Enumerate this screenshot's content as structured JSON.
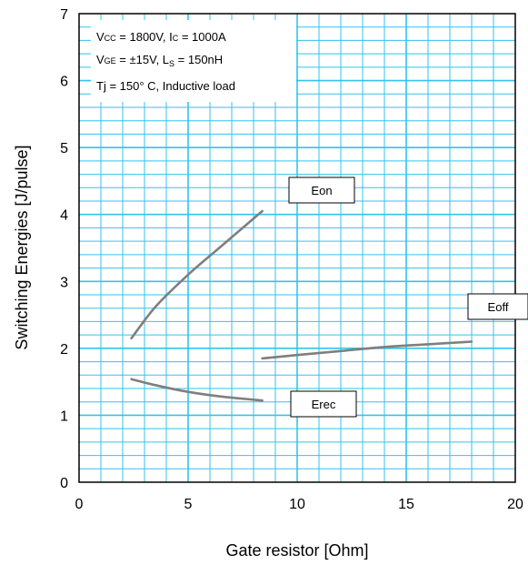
{
  "chart_data": {
    "type": "line",
    "title": "",
    "xlabel": "Gate resistor [Ohm]",
    "ylabel": "Switching Energies [J/pulse]",
    "xlim": [
      0,
      20
    ],
    "ylim": [
      0,
      7
    ],
    "xticks": [
      "0",
      "5",
      "10",
      "15",
      "20"
    ],
    "yticks": [
      "0",
      "1",
      "2",
      "3",
      "4",
      "5",
      "6",
      "7"
    ],
    "grid": true,
    "grid_color": "#33c3ee",
    "curve_color": "#7f7f7f",
    "conditions": {
      "line1": {
        "v": "V",
        "v_sub": "CC",
        "a": " = 1800V, I",
        "i_sub": "C",
        "b": " = 1000A"
      },
      "line2": {
        "v": "V",
        "v_sub": "GE",
        "a": " = ±15V, L",
        "l_sub": "S",
        "b": " = 150nH"
      },
      "line3": {
        "text": "Tj = 150°  C, Inductive load"
      }
    },
    "series": [
      {
        "name": "Eon",
        "label_pos": "upper-middle",
        "points": [
          [
            2.4,
            2.15
          ],
          [
            3.5,
            2.62
          ],
          [
            5.0,
            3.1
          ],
          [
            6.5,
            3.52
          ],
          [
            8.4,
            4.05
          ]
        ]
      },
      {
        "name": "Eoff",
        "label_pos": "right",
        "points": [
          [
            8.4,
            1.85
          ],
          [
            10,
            1.9
          ],
          [
            12,
            1.96
          ],
          [
            14,
            2.02
          ],
          [
            16,
            2.06
          ],
          [
            18,
            2.1
          ]
        ]
      },
      {
        "name": "Erec",
        "label_pos": "lower-middle",
        "points": [
          [
            2.4,
            1.54
          ],
          [
            3.5,
            1.45
          ],
          [
            5.0,
            1.35
          ],
          [
            6.5,
            1.28
          ],
          [
            8.4,
            1.22
          ]
        ]
      }
    ]
  }
}
